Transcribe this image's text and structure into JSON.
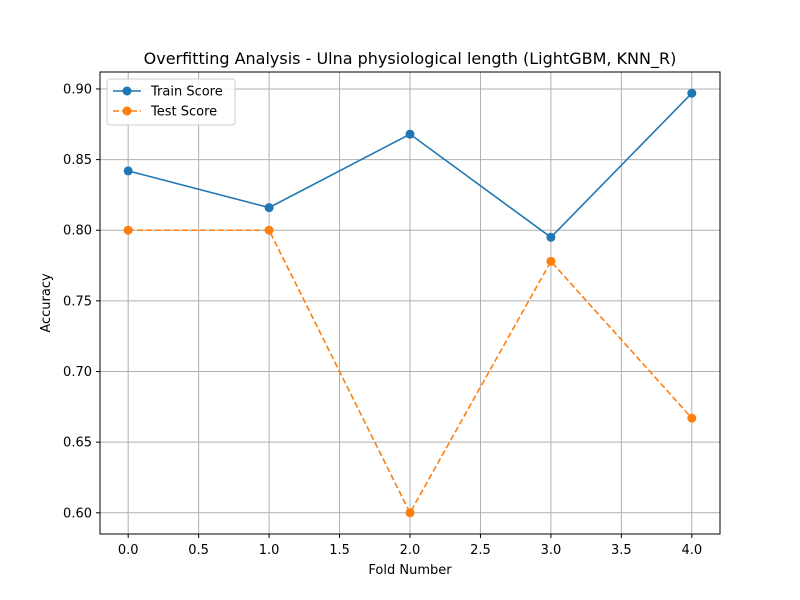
{
  "chart_data": {
    "type": "line",
    "title": "Overfitting Analysis - Ulna physiological length (LightGBM, KNN_R)",
    "xlabel": "Fold Number",
    "ylabel": "Accuracy",
    "x": [
      0,
      1,
      2,
      3,
      4
    ],
    "xlim": [
      -0.2,
      4.2
    ],
    "ylim": [
      0.585,
      0.912
    ],
    "xticks": [
      0.0,
      0.5,
      1.0,
      1.5,
      2.0,
      2.5,
      3.0,
      3.5,
      4.0
    ],
    "xtick_labels": [
      "0.0",
      "0.5",
      "1.0",
      "1.5",
      "2.0",
      "2.5",
      "3.0",
      "3.5",
      "4.0"
    ],
    "yticks": [
      0.6,
      0.65,
      0.7,
      0.75,
      0.8,
      0.85,
      0.9
    ],
    "ytick_labels": [
      "0.60",
      "0.65",
      "0.70",
      "0.75",
      "0.80",
      "0.85",
      "0.90"
    ],
    "grid": true,
    "legend_position": "top-left",
    "series": [
      {
        "name": "Train Score",
        "values": [
          0.842,
          0.816,
          0.868,
          0.795,
          0.897
        ],
        "color": "#1f77b4",
        "style": "solid",
        "marker": "circle"
      },
      {
        "name": "Test Score",
        "values": [
          0.8,
          0.8,
          0.6,
          0.778,
          0.667
        ],
        "color": "#ff7f0e",
        "style": "dashed",
        "marker": "circle"
      }
    ]
  }
}
